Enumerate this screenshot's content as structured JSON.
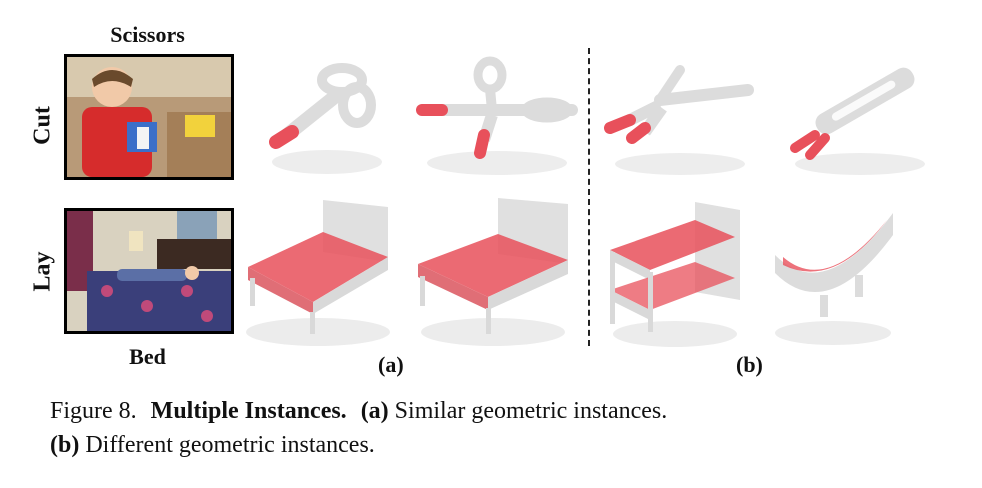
{
  "figure": {
    "column_headers": {
      "object_top": "Scissors",
      "object_bottom": "Bed"
    },
    "row_labels": {
      "top": "Cut",
      "bottom": "Lay"
    },
    "panel_labels": {
      "a": "(a)",
      "b": "(b)"
    },
    "caption": {
      "number": "Figure 8.",
      "title": "Multiple Instances.",
      "part_a_label": "(a)",
      "part_a_text": "Similar geometric instances.",
      "part_b_label": "(b)",
      "part_b_text": "Different geometric instances."
    },
    "colors": {
      "point_gray": "#e2e2e2",
      "highlight_red": "#e8505b",
      "shadow": "#cfcfcf"
    },
    "icons": [
      "scissors-pointcloud",
      "bed-pointcloud",
      "photo-child-cutting",
      "photo-person-on-bed"
    ]
  }
}
